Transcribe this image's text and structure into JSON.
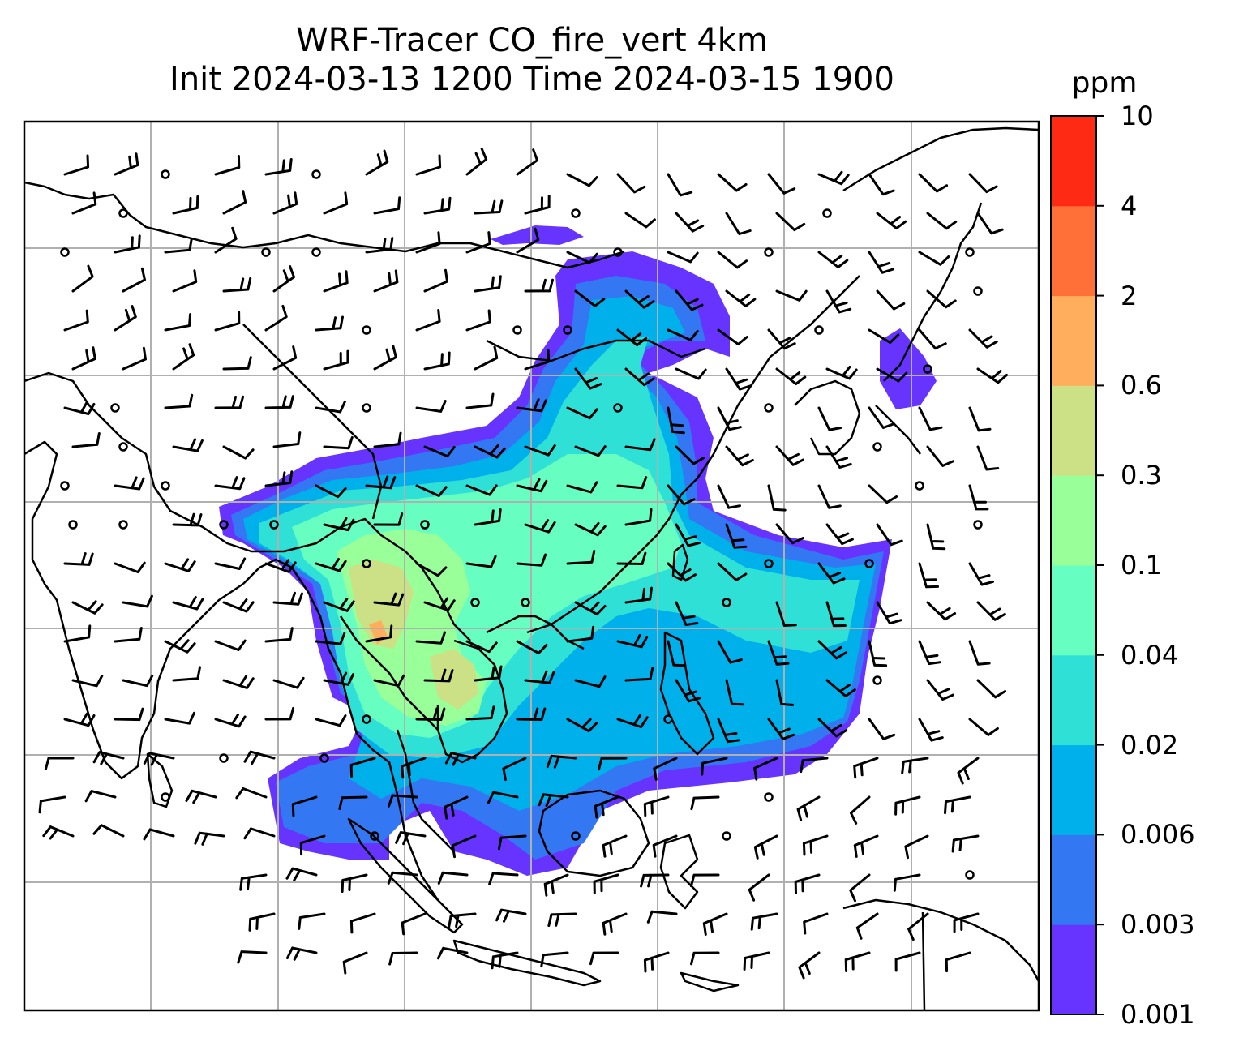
{
  "title": {
    "line1": "WRF-Tracer CO_fire_vert 4km",
    "line2": "Init 2024-03-13 1200 Time 2024-03-15 1900"
  },
  "colorbar": {
    "unit": "ppm",
    "levels": [
      "0.001",
      "0.003",
      "0.006",
      "0.02",
      "0.04",
      "0.1",
      "0.3",
      "0.6",
      "2",
      "4",
      "10"
    ],
    "colors": [
      "#6633ff",
      "#3378f2",
      "#00b0ea",
      "#2fe0d6",
      "#66ffc1",
      "#99ff99",
      "#cce085",
      "#ffae5e",
      "#ff7038",
      "#ff2a14"
    ]
  },
  "map": {
    "variable": "CO_fire_vert",
    "overlay": "wind barbs",
    "gridlines": true,
    "colors": {
      "coastline": "#000000",
      "gridline": "#b0b0b0",
      "barb": "#000000"
    }
  }
}
